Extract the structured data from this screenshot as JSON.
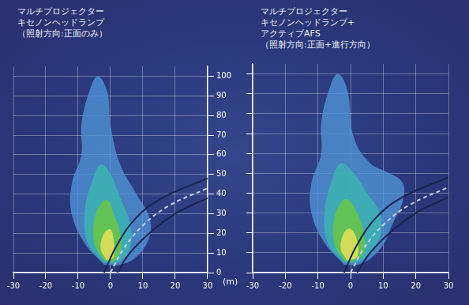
{
  "chart_data": [
    {
      "type": "line",
      "title": [
        "マルチプロジェクター",
        "キセノンヘッドランプ",
        "（照射方向:正面のみ）"
      ],
      "y_label": "(m)",
      "xlim": [
        -30,
        30
      ],
      "xticks": [
        -30,
        -20,
        -10,
        0,
        10,
        20,
        30
      ],
      "ylim": [
        0,
        105
      ],
      "yticks": [
        0,
        10,
        20,
        30,
        40,
        50,
        60,
        70,
        80,
        90,
        100
      ],
      "grid": true,
      "series": [
        {
          "type": "area",
          "color": "#4f94d4",
          "x": [
            -2,
            -8,
            -12,
            -12,
            -9,
            -9,
            -7,
            -4,
            -1,
            0,
            3,
            8,
            12,
            12,
            8,
            3,
            -2
          ],
          "values": [
            4,
            15,
            30,
            45,
            60,
            75,
            90,
            100,
            92,
            75,
            55,
            40,
            28,
            18,
            8,
            4,
            4
          ]
        },
        {
          "type": "area",
          "color": "#3cb8b0",
          "x": [
            -2,
            -7,
            -8,
            -6,
            -3,
            0,
            3,
            6,
            6,
            2,
            -2
          ],
          "values": [
            5,
            15,
            30,
            45,
            55,
            50,
            38,
            25,
            12,
            5,
            5
          ]
        },
        {
          "type": "area",
          "color": "#6cc83c",
          "x": [
            -2,
            -5,
            -5,
            -3,
            -1,
            1,
            3,
            3,
            1,
            -2
          ],
          "values": [
            6,
            15,
            27,
            35,
            37,
            30,
            20,
            10,
            6,
            6
          ]
        },
        {
          "type": "area",
          "color": "#f2e25a",
          "x": [
            -1,
            -3,
            -2,
            0,
            1,
            1,
            -1
          ],
          "values": [
            6,
            12,
            20,
            22,
            16,
            8,
            6
          ]
        },
        {
          "type": "line",
          "line_style": "solid",
          "color": "#1a2450",
          "x": [
            -2,
            2,
            8,
            16,
            30
          ],
          "values": [
            0,
            14,
            28,
            38,
            48
          ]
        },
        {
          "type": "line",
          "line_style": "dashed",
          "color": "#c8d0e8",
          "x": [
            0,
            4,
            10,
            18,
            30
          ],
          "values": [
            0,
            12,
            24,
            34,
            43
          ]
        },
        {
          "type": "line",
          "line_style": "solid",
          "color": "#1a2450",
          "x": [
            2,
            6,
            12,
            20,
            30
          ],
          "values": [
            0,
            10,
            20,
            30,
            38
          ]
        }
      ]
    },
    {
      "type": "line",
      "title": [
        "マルチプロジェクター",
        "キセノンヘッドランプ+",
        "アクティブAFS",
        "（照射方向:正面+進行方向）"
      ],
      "xlim": [
        -30,
        30
      ],
      "xticks": [
        -30,
        -20,
        -10,
        0,
        10,
        20,
        30
      ],
      "ylim": [
        0,
        105
      ],
      "yticks": [
        0,
        10,
        20,
        30,
        40,
        50,
        60,
        70,
        80,
        90,
        100
      ],
      "grid": true,
      "tick_labels": "x",
      "series": [
        {
          "type": "area",
          "color": "#4f94d4",
          "x": [
            -2,
            -8,
            -12,
            -12,
            -9,
            -9,
            -7,
            -4,
            -1,
            1,
            6,
            12,
            16,
            16,
            13,
            10,
            6,
            2,
            -2
          ],
          "values": [
            4,
            15,
            30,
            45,
            60,
            75,
            90,
            100,
            92,
            68,
            55,
            50,
            45,
            36,
            25,
            14,
            7,
            4,
            4
          ]
        },
        {
          "type": "area",
          "color": "#3cb8b0",
          "x": [
            -2,
            -7,
            -8,
            -6,
            -3,
            1,
            5,
            9,
            9,
            5,
            1,
            -2
          ],
          "values": [
            5,
            15,
            30,
            45,
            55,
            50,
            40,
            30,
            18,
            8,
            5,
            5
          ]
        },
        {
          "type": "area",
          "color": "#6cc83c",
          "x": [
            -2,
            -5,
            -5,
            -3,
            -1,
            2,
            4,
            4,
            1,
            -2
          ],
          "values": [
            6,
            15,
            27,
            35,
            37,
            30,
            20,
            10,
            6,
            6
          ]
        },
        {
          "type": "area",
          "color": "#f2e25a",
          "x": [
            -1,
            -3,
            -2,
            0,
            2,
            2,
            -1
          ],
          "values": [
            6,
            12,
            20,
            22,
            16,
            8,
            6
          ]
        },
        {
          "type": "line",
          "line_style": "solid",
          "color": "#1a2450",
          "x": [
            -2,
            2,
            8,
            16,
            30
          ],
          "values": [
            0,
            14,
            28,
            38,
            48
          ]
        },
        {
          "type": "line",
          "line_style": "dashed",
          "color": "#c8d0e8",
          "x": [
            0,
            4,
            10,
            18,
            30
          ],
          "values": [
            0,
            12,
            24,
            34,
            43
          ]
        },
        {
          "type": "line",
          "line_style": "solid",
          "color": "#1a2450",
          "x": [
            2,
            6,
            12,
            20,
            30
          ],
          "values": [
            0,
            10,
            20,
            30,
            38
          ]
        }
      ]
    }
  ]
}
